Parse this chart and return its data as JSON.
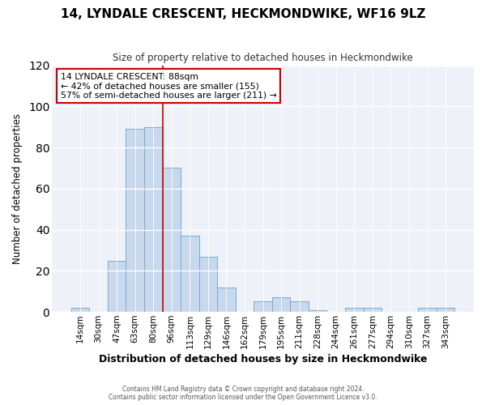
{
  "title": "14, LYNDALE CRESCENT, HECKMONDWIKE, WF16 9LZ",
  "subtitle": "Size of property relative to detached houses in Heckmondwike",
  "xlabel": "Distribution of detached houses by size in Heckmondwike",
  "ylabel": "Number of detached properties",
  "bar_labels": [
    "14sqm",
    "30sqm",
    "47sqm",
    "63sqm",
    "80sqm",
    "96sqm",
    "113sqm",
    "129sqm",
    "146sqm",
    "162sqm",
    "179sqm",
    "195sqm",
    "211sqm",
    "228sqm",
    "244sqm",
    "261sqm",
    "277sqm",
    "294sqm",
    "310sqm",
    "327sqm",
    "343sqm"
  ],
  "bar_values": [
    2,
    0,
    25,
    89,
    90,
    70,
    37,
    27,
    12,
    0,
    5,
    7,
    5,
    1,
    0,
    2,
    2,
    0,
    0,
    2,
    2
  ],
  "bar_color": "#c8d9ee",
  "bar_edge_color": "#7aaad0",
  "marker_bin_index": 4,
  "marker_color": "#cc0000",
  "ylim": [
    0,
    120
  ],
  "yticks": [
    0,
    20,
    40,
    60,
    80,
    100,
    120
  ],
  "annotation_title": "14 LYNDALE CRESCENT: 88sqm",
  "annotation_line1": "← 42% of detached houses are smaller (155)",
  "annotation_line2": "57% of semi-detached houses are larger (211) →",
  "annotation_box_color": "#cc0000",
  "footer_line1": "Contains HM Land Registry data © Crown copyright and database right 2024.",
  "footer_line2": "Contains public sector information licensed under the Open Government Licence v3.0.",
  "background_color": "#ffffff",
  "plot_bg_color": "#eef2f8"
}
